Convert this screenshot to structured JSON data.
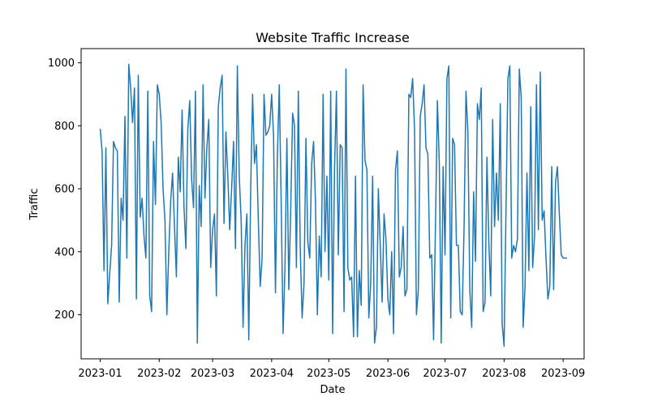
{
  "chart_data": {
    "type": "line",
    "title": "Website Traffic Increase",
    "xlabel": "Date",
    "ylabel": "Traffic",
    "x_ticks": [
      "2023-01",
      "2023-02",
      "2023-03",
      "2023-04",
      "2023-05",
      "2023-06",
      "2023-07",
      "2023-08",
      "2023-09"
    ],
    "y_ticks": [
      200,
      400,
      600,
      800,
      1000
    ],
    "xlim": [
      "2022-12-22",
      "2023-09-12"
    ],
    "ylim": [
      60,
      1045
    ],
    "grid": false,
    "line_color": "#1f77b4",
    "series": [
      {
        "x": [
          "2023-01-01",
          "2023-01-02",
          "2023-01-03",
          "2023-01-04",
          "2023-01-05",
          "2023-01-06",
          "2023-01-07",
          "2023-01-08",
          "2023-01-09",
          "2023-01-10",
          "2023-01-11",
          "2023-01-12",
          "2023-01-13",
          "2023-01-14",
          "2023-01-15",
          "2023-01-16",
          "2023-01-17",
          "2023-01-18",
          "2023-01-19",
          "2023-01-20",
          "2023-01-21",
          "2023-01-22",
          "2023-01-23",
          "2023-01-24",
          "2023-01-25",
          "2023-01-26",
          "2023-01-27",
          "2023-01-28",
          "2023-01-29",
          "2023-01-30",
          "2023-01-31",
          "2023-02-01",
          "2023-02-02",
          "2023-02-03",
          "2023-02-04",
          "2023-02-05",
          "2023-02-06",
          "2023-02-07",
          "2023-02-08",
          "2023-02-09",
          "2023-02-10",
          "2023-02-11",
          "2023-02-12",
          "2023-02-13",
          "2023-02-14",
          "2023-02-15",
          "2023-02-16",
          "2023-02-17",
          "2023-02-18",
          "2023-02-19",
          "2023-02-20",
          "2023-02-21",
          "2023-02-22",
          "2023-02-23",
          "2023-02-24",
          "2023-02-25",
          "2023-02-26",
          "2023-02-27",
          "2023-02-28",
          "2023-03-01",
          "2023-03-02",
          "2023-03-03",
          "2023-03-04",
          "2023-03-05",
          "2023-03-06",
          "2023-03-07",
          "2023-03-08",
          "2023-03-09",
          "2023-03-10",
          "2023-03-11",
          "2023-03-12",
          "2023-03-13",
          "2023-03-14",
          "2023-03-15",
          "2023-03-16",
          "2023-03-17",
          "2023-03-18",
          "2023-03-19",
          "2023-03-20",
          "2023-03-21",
          "2023-03-22",
          "2023-03-23",
          "2023-03-24",
          "2023-03-25",
          "2023-03-26",
          "2023-03-27",
          "2023-03-28",
          "2023-03-29",
          "2023-03-30",
          "2023-03-31",
          "2023-04-01",
          "2023-04-02",
          "2023-04-03",
          "2023-04-04",
          "2023-04-05",
          "2023-04-06",
          "2023-04-07",
          "2023-04-08",
          "2023-04-09",
          "2023-04-10",
          "2023-04-11",
          "2023-04-12",
          "2023-04-13",
          "2023-04-14",
          "2023-04-15",
          "2023-04-16",
          "2023-04-17",
          "2023-04-18",
          "2023-04-19",
          "2023-04-20",
          "2023-04-21",
          "2023-04-22",
          "2023-04-23",
          "2023-04-24",
          "2023-04-25",
          "2023-04-26",
          "2023-04-27",
          "2023-04-28",
          "2023-04-29",
          "2023-04-30",
          "2023-05-01",
          "2023-05-02",
          "2023-05-03",
          "2023-05-04",
          "2023-05-05",
          "2023-05-06",
          "2023-05-07",
          "2023-05-08",
          "2023-05-09",
          "2023-05-10",
          "2023-05-11",
          "2023-05-12",
          "2023-05-13",
          "2023-05-14",
          "2023-05-15",
          "2023-05-16",
          "2023-05-17",
          "2023-05-18",
          "2023-05-19",
          "2023-05-20",
          "2023-05-21",
          "2023-05-22",
          "2023-05-23",
          "2023-05-24",
          "2023-05-25",
          "2023-05-26",
          "2023-05-27",
          "2023-05-28",
          "2023-05-29",
          "2023-05-30",
          "2023-05-31",
          "2023-06-01",
          "2023-06-02",
          "2023-06-03",
          "2023-06-04",
          "2023-06-05",
          "2023-06-06",
          "2023-06-07",
          "2023-06-08",
          "2023-06-09",
          "2023-06-10",
          "2023-06-11",
          "2023-06-12",
          "2023-06-13",
          "2023-06-14",
          "2023-06-15",
          "2023-06-16",
          "2023-06-17",
          "2023-06-18",
          "2023-06-19",
          "2023-06-20",
          "2023-06-21",
          "2023-06-22",
          "2023-06-23",
          "2023-06-24",
          "2023-06-25",
          "2023-06-26",
          "2023-06-27",
          "2023-06-28",
          "2023-06-29",
          "2023-06-30",
          "2023-07-01",
          "2023-07-02",
          "2023-07-03",
          "2023-07-04",
          "2023-07-05",
          "2023-07-06",
          "2023-07-07",
          "2023-07-08",
          "2023-07-09",
          "2023-07-10",
          "2023-07-11",
          "2023-07-12",
          "2023-07-13",
          "2023-07-14",
          "2023-07-15",
          "2023-07-16",
          "2023-07-17",
          "2023-07-18",
          "2023-07-19",
          "2023-07-20",
          "2023-07-21",
          "2023-07-22",
          "2023-07-23",
          "2023-07-24",
          "2023-07-25",
          "2023-07-26",
          "2023-07-27",
          "2023-07-28",
          "2023-07-29",
          "2023-07-30",
          "2023-07-31",
          "2023-08-01",
          "2023-08-02",
          "2023-08-03",
          "2023-08-04",
          "2023-08-05",
          "2023-08-06",
          "2023-08-07",
          "2023-08-08",
          "2023-08-09",
          "2023-08-10",
          "2023-08-11",
          "2023-08-12",
          "2023-08-13",
          "2023-08-14",
          "2023-08-15",
          "2023-08-16",
          "2023-08-17",
          "2023-08-18",
          "2023-08-19",
          "2023-08-20",
          "2023-08-21",
          "2023-08-22",
          "2023-08-23",
          "2023-08-24",
          "2023-08-25",
          "2023-08-26",
          "2023-08-27",
          "2023-08-28",
          "2023-08-29",
          "2023-08-30",
          "2023-08-31",
          "2023-09-01",
          "2023-09-02",
          "2023-09-03"
        ],
        "values": [
          790,
          720,
          340,
          730,
          235,
          330,
          420,
          750,
          730,
          720,
          240,
          570,
          500,
          830,
          380,
          995,
          920,
          810,
          920,
          250,
          960,
          510,
          570,
          450,
          380,
          910,
          260,
          210,
          750,
          550,
          930,
          900,
          810,
          600,
          500,
          200,
          400,
          560,
          650,
          480,
          320,
          700,
          590,
          850,
          540,
          410,
          790,
          880,
          630,
          540,
          910,
          110,
          610,
          480,
          930,
          570,
          730,
          820,
          350,
          470,
          520,
          260,
          860,
          920,
          960,
          490,
          780,
          640,
          470,
          600,
          750,
          410,
          990,
          640,
          500,
          160,
          420,
          520,
          120,
          600,
          900,
          680,
          740,
          500,
          290,
          380,
          900,
          770,
          780,
          800,
          900,
          770,
          270,
          700,
          930,
          560,
          140,
          350,
          760,
          280,
          530,
          840,
          800,
          350,
          910,
          410,
          190,
          300,
          760,
          430,
          380,
          680,
          750,
          560,
          200,
          450,
          320,
          900,
          400,
          640,
          310,
          910,
          140,
          660,
          910,
          390,
          740,
          730,
          210,
          980,
          350,
          310,
          320,
          130,
          640,
          130,
          340,
          230,
          930,
          690,
          660,
          190,
          300,
          640,
          110,
          160,
          600,
          420,
          240,
          520,
          440,
          250,
          200,
          400,
          140,
          660,
          720,
          320,
          350,
          480,
          260,
          280,
          900,
          890,
          950,
          790,
          200,
          280,
          830,
          870,
          930,
          730,
          710,
          380,
          390,
          120,
          490,
          880,
          680,
          110,
          670,
          390,
          950,
          990,
          190,
          760,
          740,
          420,
          420,
          210,
          200,
          480,
          910,
          780,
          280,
          160,
          590,
          370,
          870,
          820,
          920,
          210,
          240,
          700,
          430,
          260,
          820,
          480,
          650,
          500,
          870,
          170,
          100,
          530,
          950,
          990,
          380,
          420,
          400,
          440,
          980,
          890,
          160,
          290,
          650,
          340,
          860,
          350,
          450,
          930,
          470,
          970,
          500,
          530,
          380,
          250,
          290,
          670,
          280,
          620,
          670,
          520,
          390,
          380,
          380,
          380
        ]
      }
    ]
  }
}
